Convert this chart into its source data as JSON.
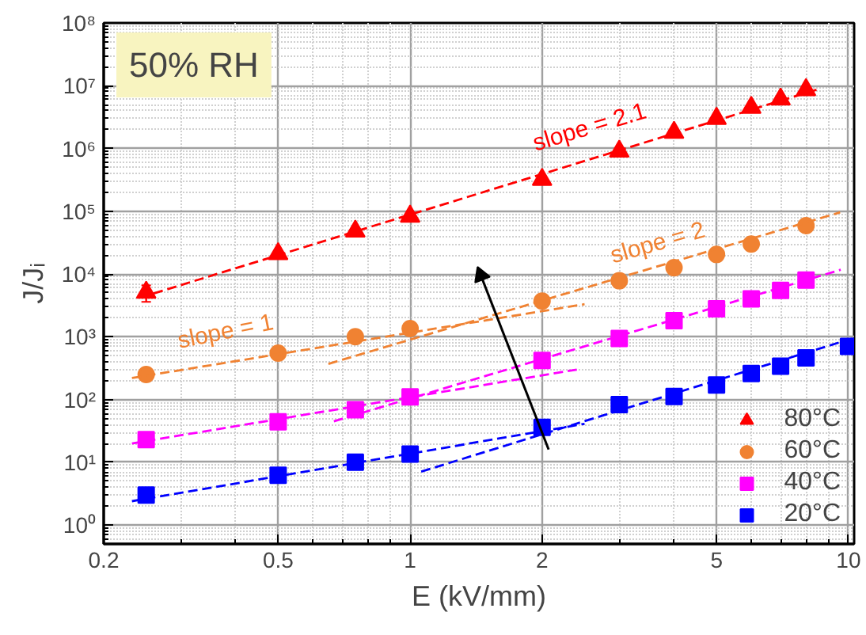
{
  "chart_data": {
    "type": "scatter",
    "title": "50% RH",
    "xlabel": "E (kV/mm)",
    "ylabel": "J/Jᵢ",
    "log": "xy",
    "grid": true,
    "legend": "bottom right",
    "xlim": [
      0.2,
      10.3
    ],
    "ylim": [
      0.5,
      100000000
    ],
    "xticks": [
      0.2,
      0.5,
      1,
      2,
      5,
      10
    ],
    "yticks": [
      {
        "value": 1,
        "label": "10⁰"
      },
      {
        "value": 10,
        "label": "10¹"
      },
      {
        "value": 100,
        "label": "10²"
      },
      {
        "value": 1000,
        "label": "10³"
      },
      {
        "value": 10000,
        "label": "10⁴"
      },
      {
        "value": 100000,
        "label": "10⁵"
      },
      {
        "value": 1000000,
        "label": "10⁶"
      },
      {
        "value": 10000000,
        "label": "10⁷"
      },
      {
        "value": 100000000,
        "label": "10⁸"
      }
    ],
    "annotations": [
      "slope = 2.1",
      "slope = 2",
      "slope = 1"
    ],
    "series": [
      {
        "name": "80°C",
        "marker": "triangle",
        "color": "#ff0000",
        "x": [
          0.25,
          0.5,
          0.75,
          1,
          2,
          3,
          4,
          5,
          6,
          7,
          8
        ],
        "values": [
          5100,
          21000,
          48000,
          83000,
          320000,
          900000,
          1800000,
          3000000,
          4500000,
          6100000,
          8600000
        ],
        "errors": [
          [
            3600,
            6600
          ],
          null,
          null,
          null,
          null,
          null,
          null,
          null,
          null,
          null,
          null
        ]
      },
      {
        "name": "60°C",
        "marker": "circle",
        "color": "#f08232",
        "x": [
          0.25,
          0.5,
          0.75,
          1,
          2,
          3,
          4,
          5,
          6,
          8
        ],
        "values": [
          250,
          550,
          1000,
          1350,
          3700,
          7800,
          12600,
          20500,
          30000,
          59000
        ]
      },
      {
        "name": "40°C",
        "marker": "square",
        "color": "#ff00ff",
        "x": [
          0.25,
          0.5,
          0.75,
          1,
          2,
          3,
          4,
          5,
          6,
          7,
          8
        ],
        "values": [
          23,
          44,
          69,
          110,
          420,
          940,
          1800,
          2800,
          4000,
          5500,
          8000
        ]
      },
      {
        "name": "20°C",
        "marker": "square",
        "color": "#0000ff",
        "x": [
          0.25,
          0.5,
          0.75,
          1,
          2,
          3,
          4,
          5,
          6,
          7,
          8,
          10
        ],
        "values": [
          3,
          6.2,
          10,
          13.5,
          36,
          83,
          112,
          170,
          260,
          340,
          460,
          700
        ]
      },
      {
        "type": "line",
        "line_style": "dashed",
        "color": "#ff0000",
        "x": [
          0.26,
          8.57
        ],
        "values": [
          4900,
          8900000
        ]
      },
      {
        "type": "line",
        "line_style": "dashed",
        "color": "#f08232",
        "x": [
          0.232,
          2.5
        ],
        "values": [
          220,
          3300
        ]
      },
      {
        "type": "line",
        "line_style": "dashed",
        "color": "#f08232",
        "x": [
          0.651,
          9.57
        ],
        "values": [
          370,
          96000
        ]
      },
      {
        "type": "line",
        "line_style": "dashed",
        "color": "#ff00ff",
        "x": [
          0.232,
          2.4
        ],
        "values": [
          20,
          300
        ]
      },
      {
        "type": "line",
        "line_style": "dashed",
        "color": "#ff00ff",
        "x": [
          0.67,
          9.6
        ],
        "values": [
          45,
          11700
        ]
      },
      {
        "type": "line",
        "line_style": "dashed",
        "color": "#0000ff",
        "x": [
          0.232,
          2.5
        ],
        "values": [
          2.4,
          41
        ]
      },
      {
        "type": "line",
        "line_style": "dashed",
        "color": "#0000ff",
        "x": [
          1.06,
          10.2
        ],
        "values": [
          7.1,
          940
        ]
      },
      {
        "type": "line",
        "line_style": "solid",
        "color": "#000000",
        "x": [
          2.07,
          1.45
        ],
        "values": [
          16,
          9500
        ]
      }
    ]
  }
}
